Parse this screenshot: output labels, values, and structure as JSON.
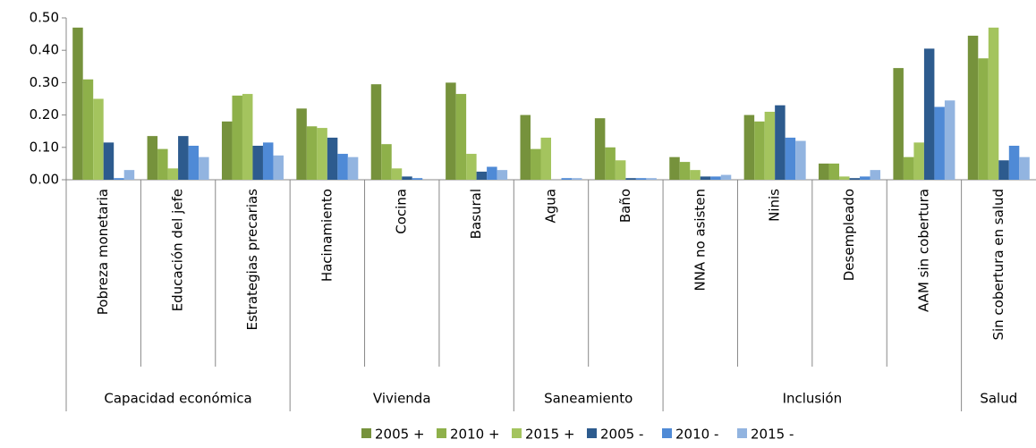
{
  "chart_data": {
    "type": "bar",
    "groups": [
      {
        "name": "Capacidad económica",
        "categories": [
          "Pobreza monetaria",
          "Educación del jefe",
          "Estrategias precarias"
        ]
      },
      {
        "name": "Vivienda",
        "categories": [
          "Hacinamiento",
          "Cocina",
          "Basural"
        ]
      },
      {
        "name": "Saneamiento",
        "categories": [
          "Agua",
          "Baño"
        ]
      },
      {
        "name": "Inclusión",
        "categories": [
          "NNA no asisten",
          "Ninis",
          "Desempleado",
          "AAM sin cobertura"
        ]
      },
      {
        "name": "Salud",
        "categories": [
          "Sin cobertura en salud"
        ]
      }
    ],
    "series": [
      {
        "name": "2005 +",
        "color": "#76923c",
        "values": [
          0.47,
          0.135,
          0.18,
          0.22,
          0.295,
          0.3,
          0.2,
          0.19,
          0.07,
          0.2,
          0.05,
          0.345,
          0.445
        ]
      },
      {
        "name": "2010 +",
        "color": "#8eb04a",
        "values": [
          0.31,
          0.095,
          0.26,
          0.165,
          0.11,
          0.265,
          0.095,
          0.1,
          0.055,
          0.18,
          0.05,
          0.07,
          0.375
        ]
      },
      {
        "name": "2015 +",
        "color": "#a4c45e",
        "values": [
          0.25,
          0.035,
          0.265,
          0.16,
          0.035,
          0.08,
          0.13,
          0.06,
          0.03,
          0.21,
          0.01,
          0.115,
          0.47
        ]
      },
      {
        "name": "2005 -",
        "color": "#2d5b8e",
        "values": [
          0.115,
          0.135,
          0.105,
          0.13,
          0.01,
          0.025,
          0,
          0.005,
          0.01,
          0.23,
          0.005,
          0.405,
          0.06
        ]
      },
      {
        "name": "2010 -",
        "color": "#4f8ad6",
        "values": [
          0.005,
          0.105,
          0.115,
          0.08,
          0.005,
          0.04,
          0.005,
          0.005,
          0.01,
          0.13,
          0.01,
          0.225,
          0.105
        ]
      },
      {
        "name": "2015 -",
        "color": "#92b4e0",
        "values": [
          0.03,
          0.07,
          0.075,
          0.07,
          0,
          0.03,
          0.005,
          0.005,
          0.015,
          0.12,
          0.03,
          0.245,
          0.07
        ]
      }
    ],
    "ylim": [
      0,
      0.5
    ],
    "yticks": [
      {
        "value": 0,
        "label": "0.00"
      },
      {
        "value": 0.1,
        "label": "0.10"
      },
      {
        "value": 0.2,
        "label": "0.20"
      },
      {
        "value": 0.3,
        "label": "0.30"
      },
      {
        "value": 0.4,
        "label": "0.40"
      },
      {
        "value": 0.5,
        "label": "0.50"
      }
    ],
    "legend": "bottom"
  }
}
